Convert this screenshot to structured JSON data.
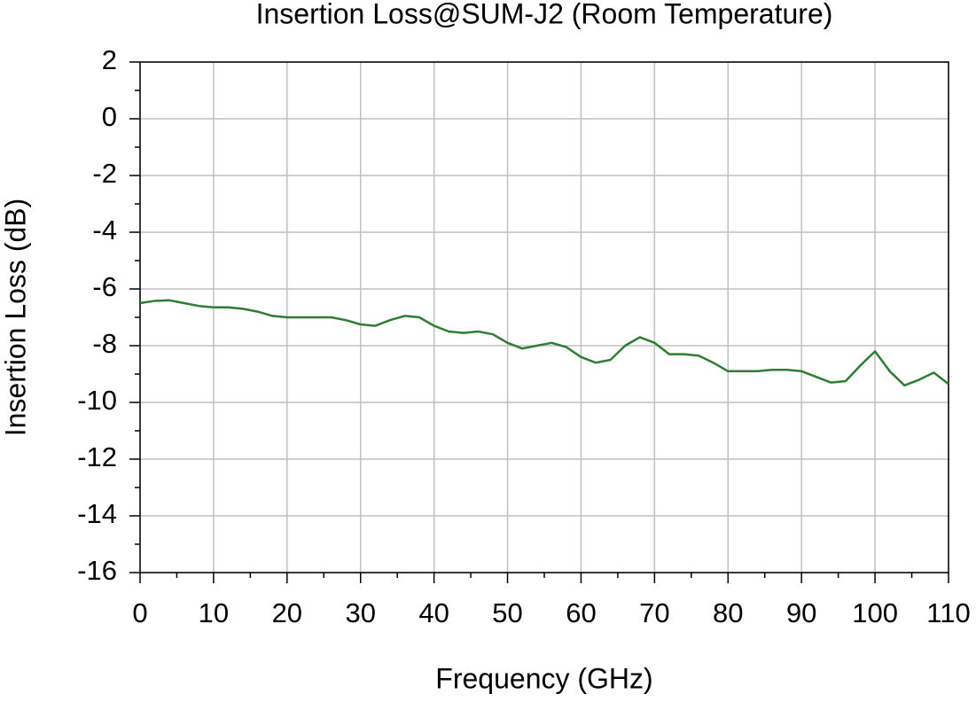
{
  "chart_data": {
    "type": "line",
    "title": "Insertion Loss@SUM-J2 (Room Temperature)",
    "x_label": "Frequency (GHz)",
    "y_label": "Insertion Loss (dB)",
    "x": [
      0,
      2,
      4,
      6,
      8,
      10,
      12,
      14,
      16,
      18,
      20,
      22,
      24,
      26,
      28,
      30,
      32,
      34,
      36,
      38,
      40,
      42,
      44,
      46,
      48,
      50,
      52,
      54,
      56,
      58,
      60,
      62,
      64,
      66,
      68,
      70,
      72,
      74,
      76,
      78,
      80,
      82,
      84,
      86,
      88,
      90,
      92,
      94,
      96,
      98,
      100,
      102,
      104,
      106,
      108,
      110
    ],
    "series": [
      {
        "name": "Insertion Loss",
        "color": "#2e7d32",
        "values": [
          -6.5,
          -6.42,
          -6.4,
          -6.5,
          -6.6,
          -6.65,
          -6.65,
          -6.7,
          -6.8,
          -6.95,
          -7.0,
          -7.0,
          -7.0,
          -7.0,
          -7.1,
          -7.25,
          -7.3,
          -7.1,
          -6.95,
          -7.0,
          -7.3,
          -7.5,
          -7.55,
          -7.5,
          -7.6,
          -7.9,
          -8.1,
          -8.0,
          -7.9,
          -8.05,
          -8.4,
          -8.6,
          -8.5,
          -8.0,
          -7.7,
          -7.9,
          -8.3,
          -8.3,
          -8.35,
          -8.6,
          -8.9,
          -8.9,
          -8.9,
          -8.85,
          -8.85,
          -8.9,
          -9.1,
          -9.3,
          -9.25,
          -8.7,
          -8.2,
          -8.9,
          -9.4,
          -9.2,
          -8.95,
          -9.35
        ]
      }
    ],
    "xlim": [
      0,
      110
    ],
    "xticks": [
      0,
      10,
      20,
      30,
      40,
      50,
      60,
      70,
      80,
      90,
      100,
      110
    ],
    "ylim": [
      -16,
      2
    ],
    "yticks": [
      -16,
      -14,
      -12,
      -10,
      -8,
      -6,
      -4,
      -2,
      0,
      2
    ],
    "grid": true
  }
}
